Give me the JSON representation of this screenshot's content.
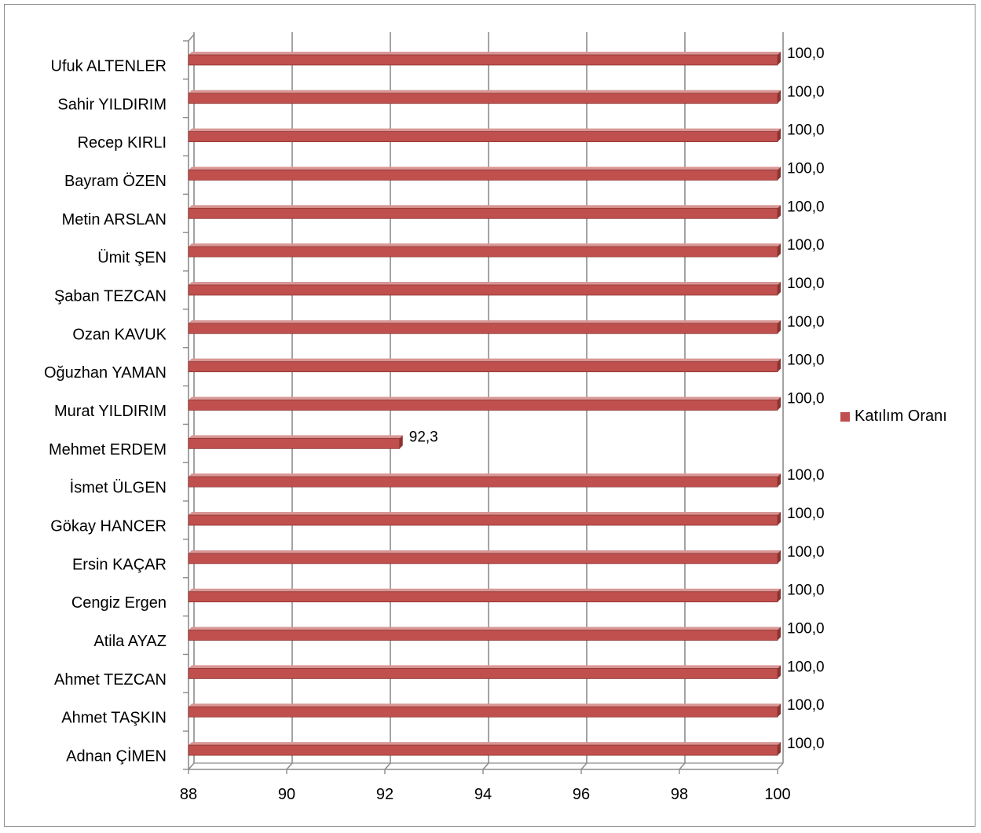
{
  "chart_data": {
    "type": "bar",
    "orientation": "horizontal",
    "categories": [
      "Ufuk ALTENLER",
      "Sahir YILDIRIM",
      "Recep KIRLI",
      "Bayram ÖZEN",
      "Metin ARSLAN",
      "Ümit ŞEN",
      "Şaban TEZCAN",
      "Ozan KAVUK",
      "Oğuzhan YAMAN",
      "Murat YILDIRIM",
      "Mehmet ERDEM",
      "İsmet ÜLGEN",
      "Gökay HANCER",
      "Ersin KAÇAR",
      "Cengiz Ergen",
      "Atila AYAZ",
      "Ahmet TEZCAN",
      "Ahmet TAŞKIN",
      "Adnan ÇİMEN"
    ],
    "series": [
      {
        "name": "Katılım Oranı",
        "values": [
          100,
          100,
          100,
          100,
          100,
          100,
          100,
          100,
          100,
          100,
          92.3,
          100,
          100,
          100,
          100,
          100,
          100,
          100,
          100
        ],
        "value_labels": [
          "100,0",
          "100,0",
          "100,0",
          "100,0",
          "100,0",
          "100,0",
          "100,0",
          "100,0",
          "100,0",
          "100,0",
          "92,3",
          "100,0",
          "100,0",
          "100,0",
          "100,0",
          "100,0",
          "100,0",
          "100,0",
          "100,0"
        ],
        "color": "#c0504d"
      }
    ],
    "xlim": [
      88,
      100
    ],
    "x_ticks": [
      "88",
      "90",
      "92",
      "94",
      "96",
      "98",
      "100"
    ],
    "grid": true,
    "legend_position": "right",
    "style": "3d-bar",
    "title": "",
    "xlabel": "",
    "ylabel": ""
  },
  "legend": {
    "label": "Katılım Oranı"
  },
  "colors": {
    "bar": "#c0504d",
    "bar_top": "#d99795",
    "bar_edge": "#8b3432",
    "grid": "#8c8c8c"
  }
}
